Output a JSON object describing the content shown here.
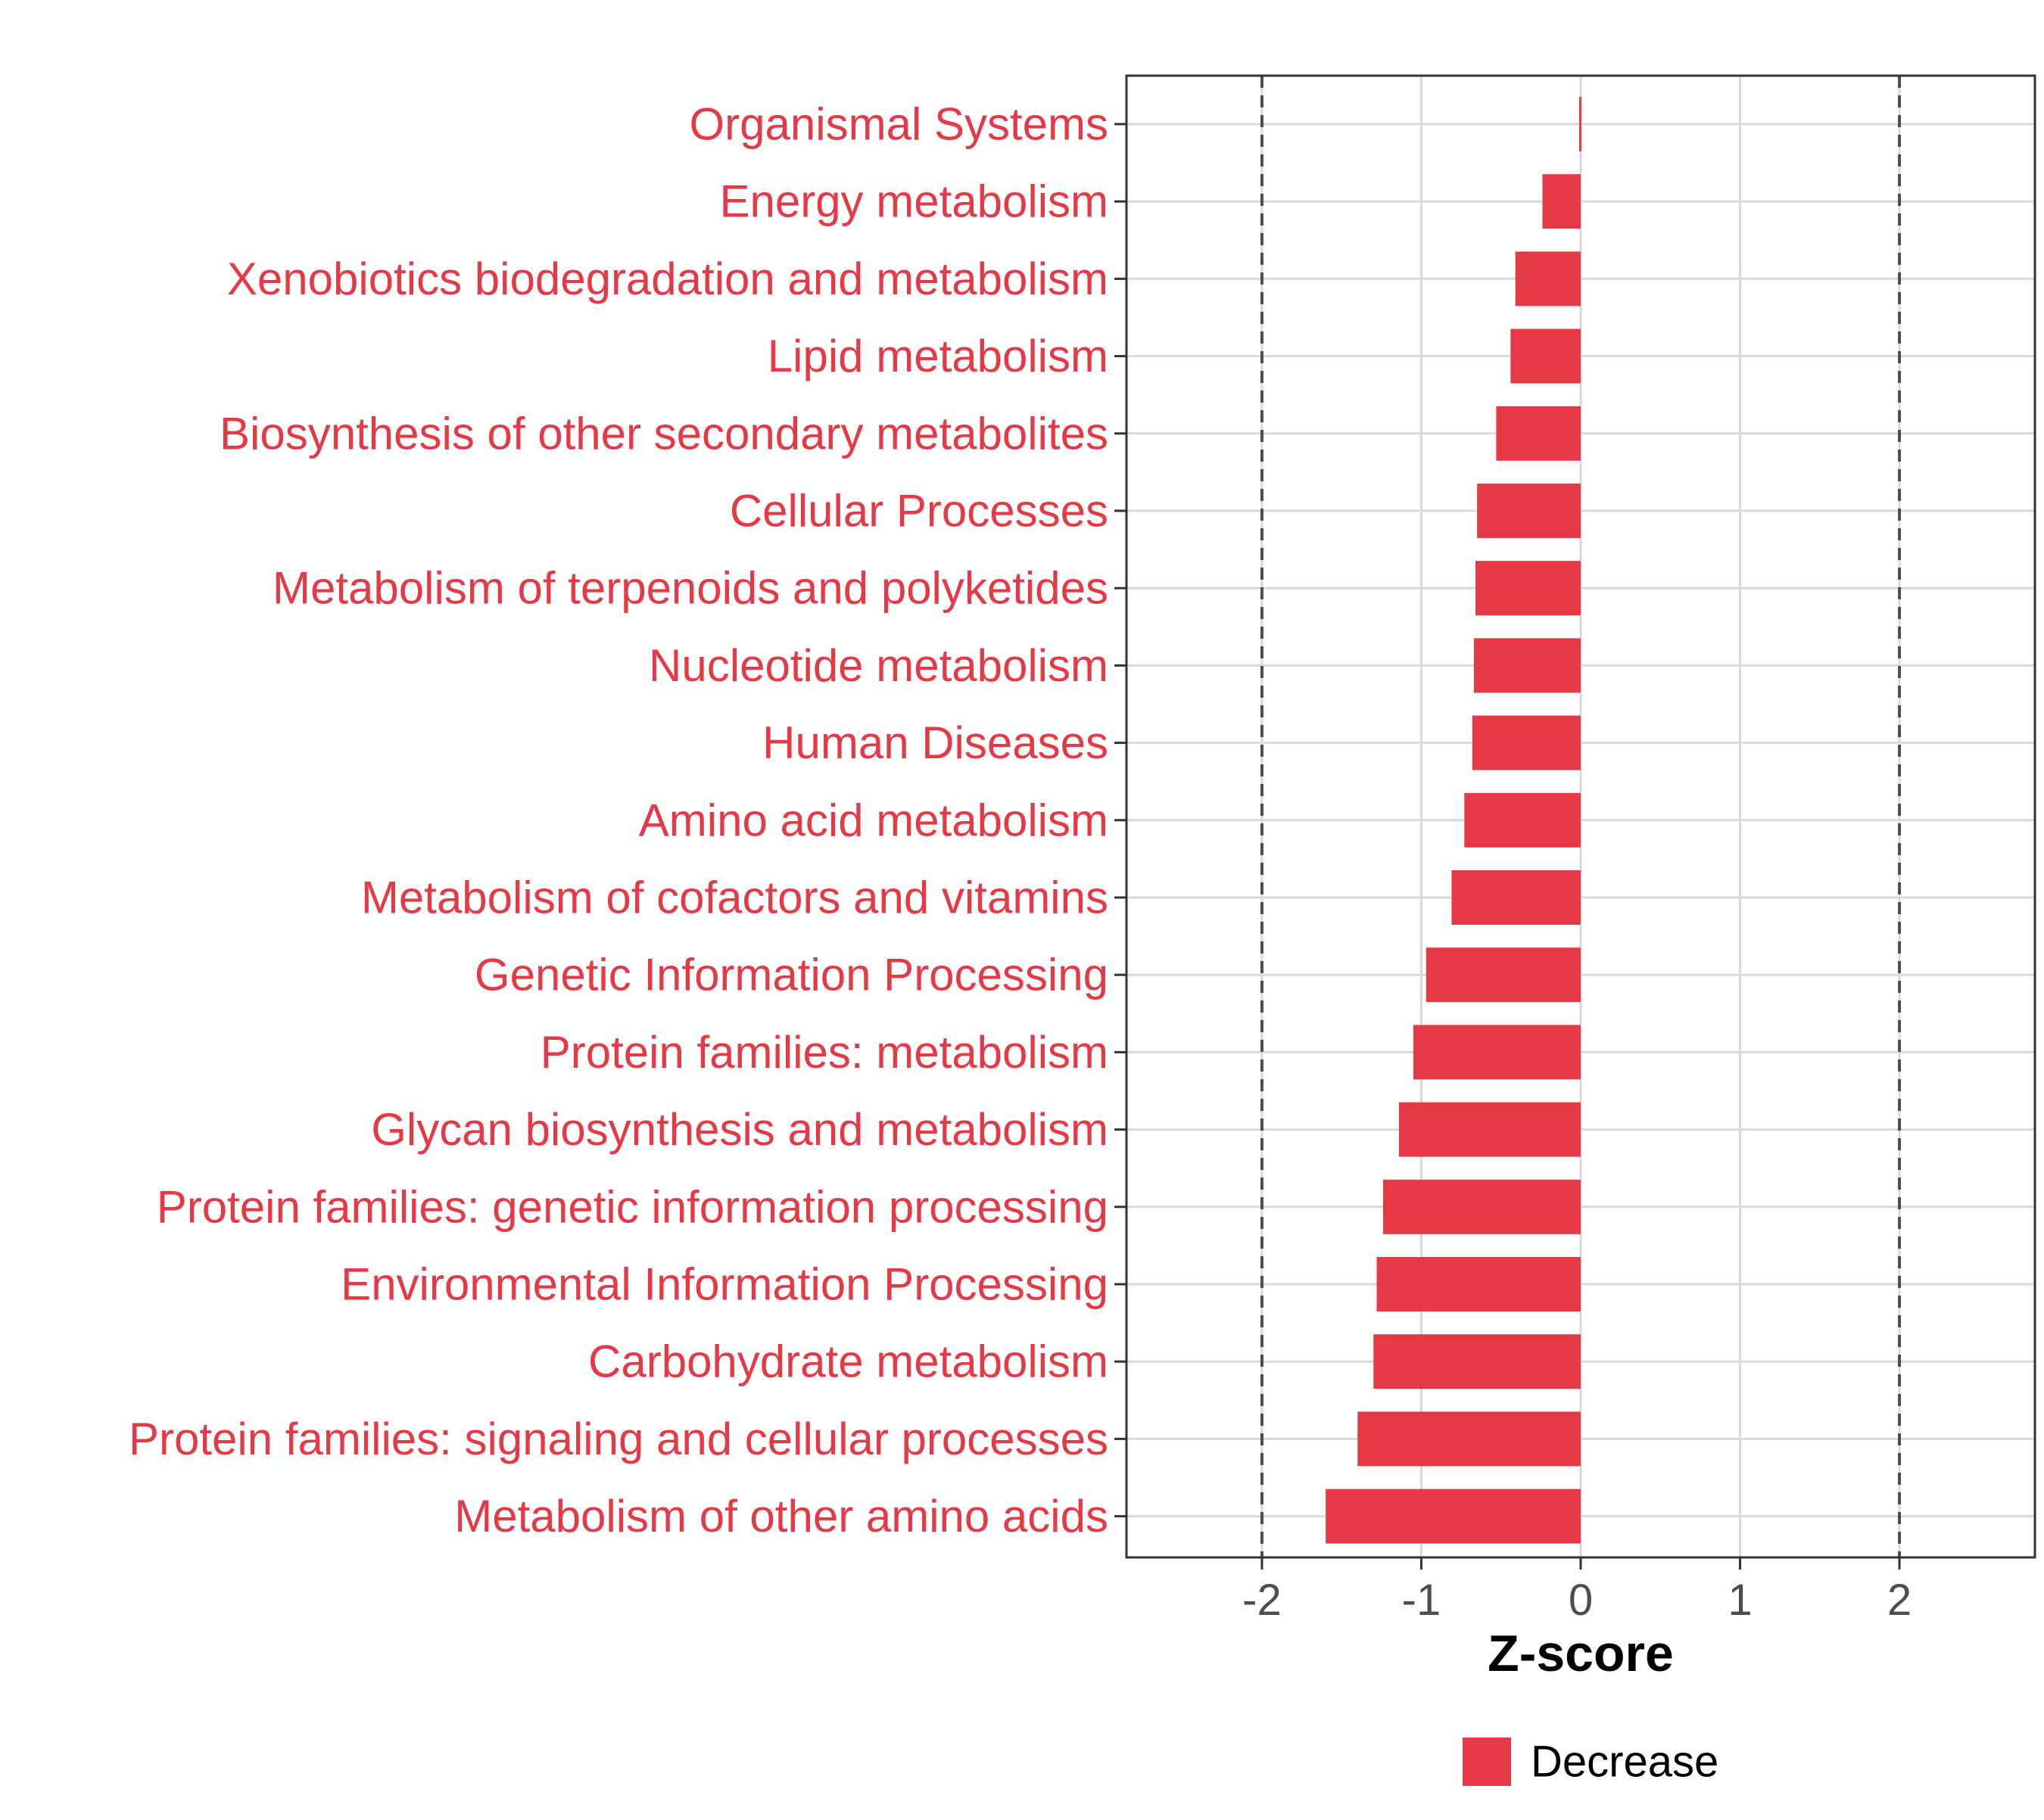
{
  "chart_data": {
    "type": "bar",
    "orientation": "horizontal",
    "title": "",
    "xlabel": "Z-score",
    "ylabel": "",
    "xlim": [
      -2.85,
      2.85
    ],
    "x_ticks": [
      -2,
      -1,
      0,
      1,
      2
    ],
    "x_tick_labels": [
      "-2",
      "-1",
      "0",
      "1",
      "2"
    ],
    "reference_lines": [
      -2,
      2
    ],
    "grid": true,
    "legend_position": "bottom",
    "colors": {
      "decrease": "#e63946",
      "category_label": "#e63946",
      "axis_text": "#4d4d4d",
      "grid": "#d9d9d9",
      "ref_line": "#4d4d4d"
    },
    "categories": [
      "Organismal Systems",
      "Energy metabolism",
      "Xenobiotics biodegradation and metabolism",
      "Lipid metabolism",
      "Biosynthesis of other secondary metabolites",
      "Cellular Processes",
      "Metabolism of terpenoids and polyketides",
      "Nucleotide metabolism",
      "Human Diseases",
      "Amino acid metabolism",
      "Metabolism of cofactors and vitamins",
      "Genetic Information Processing",
      "Protein families: metabolism",
      "Glycan biosynthesis and metabolism",
      "Protein families: genetic information processing",
      "Environmental Information Processing",
      "Carbohydrate metabolism",
      "Protein families: signaling and cellular processes",
      "Metabolism of other amino acids"
    ],
    "series": [
      {
        "name": "Decrease",
        "values": [
          -0.01,
          -0.24,
          -0.41,
          -0.44,
          -0.53,
          -0.65,
          -0.66,
          -0.67,
          -0.68,
          -0.73,
          -0.81,
          -0.97,
          -1.05,
          -1.14,
          -1.24,
          -1.28,
          -1.3,
          -1.4,
          -1.6
        ]
      }
    ]
  }
}
